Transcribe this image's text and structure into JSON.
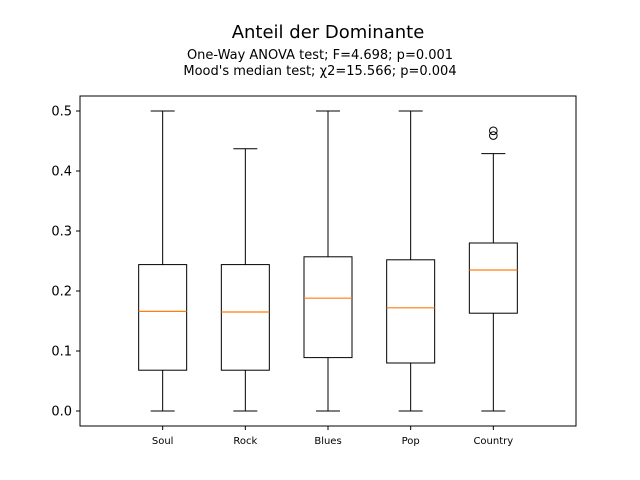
{
  "chart_data": {
    "type": "boxplot",
    "title": "Anteil der Dominante",
    "subtitle_lines": [
      "One-Way ANOVA test; F=4.698; p=0.001",
      "Mood's median test; χ2=15.566; p=0.004"
    ],
    "xlabel": "",
    "ylabel": "",
    "ylim": [
      -0.025,
      0.525
    ],
    "yticks": [
      0.0,
      0.1,
      0.2,
      0.3,
      0.4,
      0.5
    ],
    "ytick_labels": [
      "0.0",
      "0.1",
      "0.2",
      "0.3",
      "0.4",
      "0.5"
    ],
    "categories": [
      "Soul",
      "Rock",
      "Blues",
      "Pop",
      "Country"
    ],
    "boxes": [
      {
        "label": "Soul",
        "whisker_low": 0.0,
        "q1": 0.068,
        "median": 0.166,
        "q3": 0.244,
        "whisker_high": 0.5,
        "outliers": []
      },
      {
        "label": "Rock",
        "whisker_low": 0.0,
        "q1": 0.068,
        "median": 0.165,
        "q3": 0.244,
        "whisker_high": 0.437,
        "outliers": []
      },
      {
        "label": "Blues",
        "whisker_low": 0.0,
        "q1": 0.089,
        "median": 0.188,
        "q3": 0.257,
        "whisker_high": 0.5,
        "outliers": []
      },
      {
        "label": "Pop",
        "whisker_low": 0.0,
        "q1": 0.08,
        "median": 0.172,
        "q3": 0.252,
        "whisker_high": 0.5,
        "outliers": []
      },
      {
        "label": "Country",
        "whisker_low": 0.0,
        "q1": 0.163,
        "median": 0.235,
        "q3": 0.28,
        "whisker_high": 0.429,
        "outliers": [
          0.459,
          0.467
        ]
      }
    ],
    "grid": false,
    "legend": "none",
    "colors": {
      "box": "#000000",
      "median": "#ff7f0e",
      "background": "#ffffff"
    }
  }
}
